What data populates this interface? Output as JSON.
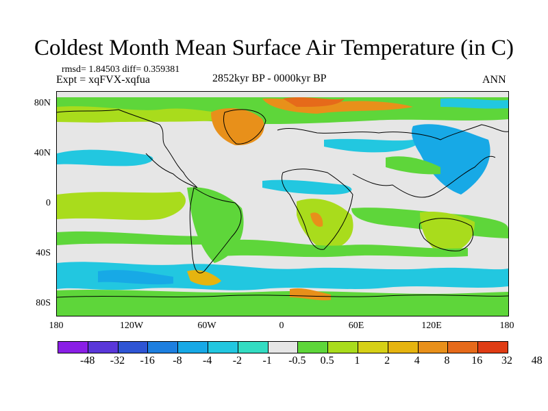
{
  "title": "Coldest Month Mean Surface Air Temperature (in C)",
  "stats": {
    "rmsd_text": "rmsd= 1.84503 diff= 0.359381"
  },
  "experiment": "Expt = xqFVX-xqfua",
  "period": "2852kyr BP - 0000kyr BP",
  "season": "ANN",
  "axes": {
    "lat_ticks": [
      "80N",
      "40N",
      "0",
      "40S",
      "80S"
    ],
    "lon_ticks": [
      "180",
      "120W",
      "60W",
      "0",
      "60E",
      "120E",
      "180"
    ]
  },
  "legend": {
    "colors": [
      "#8a1ee6",
      "#5a37d9",
      "#2f55d4",
      "#1d7fe0",
      "#17a9e6",
      "#22c7e0",
      "#33dcc2",
      "#e6e6e6",
      "#5ed63a",
      "#a9dc1c",
      "#d6d016",
      "#e6b40f",
      "#e8901a",
      "#e66a1a",
      "#e03c14"
    ],
    "labels": [
      "-48",
      "-32",
      "-16",
      "-8",
      "-4",
      "-2",
      "-1",
      "-0.5",
      "0.5",
      "1",
      "2",
      "4",
      "8",
      "16",
      "32",
      "48"
    ]
  }
}
